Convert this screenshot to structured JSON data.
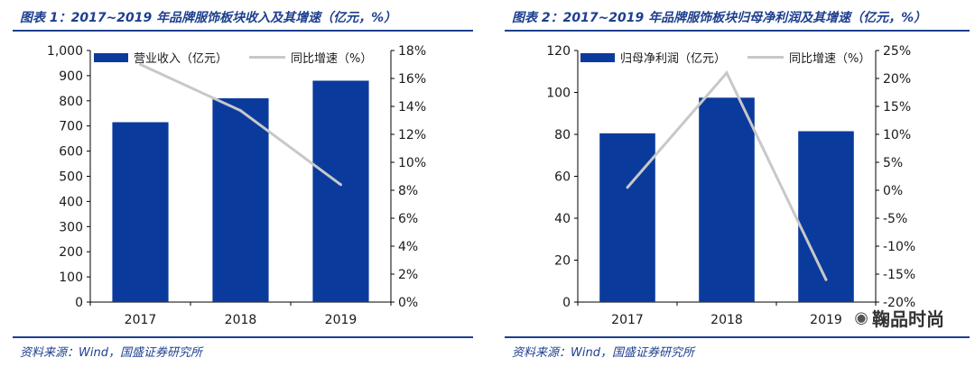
{
  "panels": [
    {
      "title": "图表 1：2017~2019 年品牌服饰板块收入及其增速（亿元，%）",
      "source": "资料来源：Wind，国盛证券研究所"
    },
    {
      "title": "图表 2：2017~2019 年品牌服饰板块归母净利润及其增速（亿元，%）",
      "source": "资料来源：Wind，国盛证券研究所"
    }
  ],
  "watermark": "鞠品时尚",
  "colors": {
    "bar": "#0a3b9c",
    "line": "#c8c8c8",
    "accent": "#1d3f8f"
  },
  "chart_data": [
    {
      "type": "bar",
      "categories": [
        "2017",
        "2018",
        "2019"
      ],
      "series": [
        {
          "name": "营业收入（亿元）",
          "type": "bar",
          "axis": "left",
          "values": [
            715,
            810,
            880
          ]
        },
        {
          "name": "同比增速（%）",
          "type": "line",
          "axis": "right",
          "values": [
            17.0,
            13.7,
            8.4
          ]
        }
      ],
      "ylim_left": [
        0,
        1000
      ],
      "yticks_left": [
        "0",
        "100",
        "200",
        "300",
        "400",
        "500",
        "600",
        "700",
        "800",
        "900",
        "1,000"
      ],
      "ylim_right": [
        0,
        18
      ],
      "yticks_right": [
        "0%",
        "2%",
        "4%",
        "6%",
        "8%",
        "10%",
        "12%",
        "14%",
        "16%",
        "18%"
      ],
      "legend": "top-left"
    },
    {
      "type": "bar",
      "categories": [
        "2017",
        "2018",
        "2019"
      ],
      "series": [
        {
          "name": "归母净利润（亿元）",
          "type": "bar",
          "axis": "left",
          "values": [
            80.5,
            97.5,
            81.5
          ]
        },
        {
          "name": "同比增速（%）",
          "type": "line",
          "axis": "right",
          "values": [
            0.5,
            21.0,
            -16.0
          ]
        }
      ],
      "ylim_left": [
        0,
        120
      ],
      "yticks_left": [
        "0",
        "20",
        "40",
        "60",
        "80",
        "100",
        "120"
      ],
      "ylim_right": [
        -20,
        25
      ],
      "yticks_right": [
        "-20%",
        "-15%",
        "-10%",
        "-5%",
        "0%",
        "5%",
        "10%",
        "15%",
        "20%",
        "25%"
      ],
      "legend": "top-left"
    }
  ]
}
